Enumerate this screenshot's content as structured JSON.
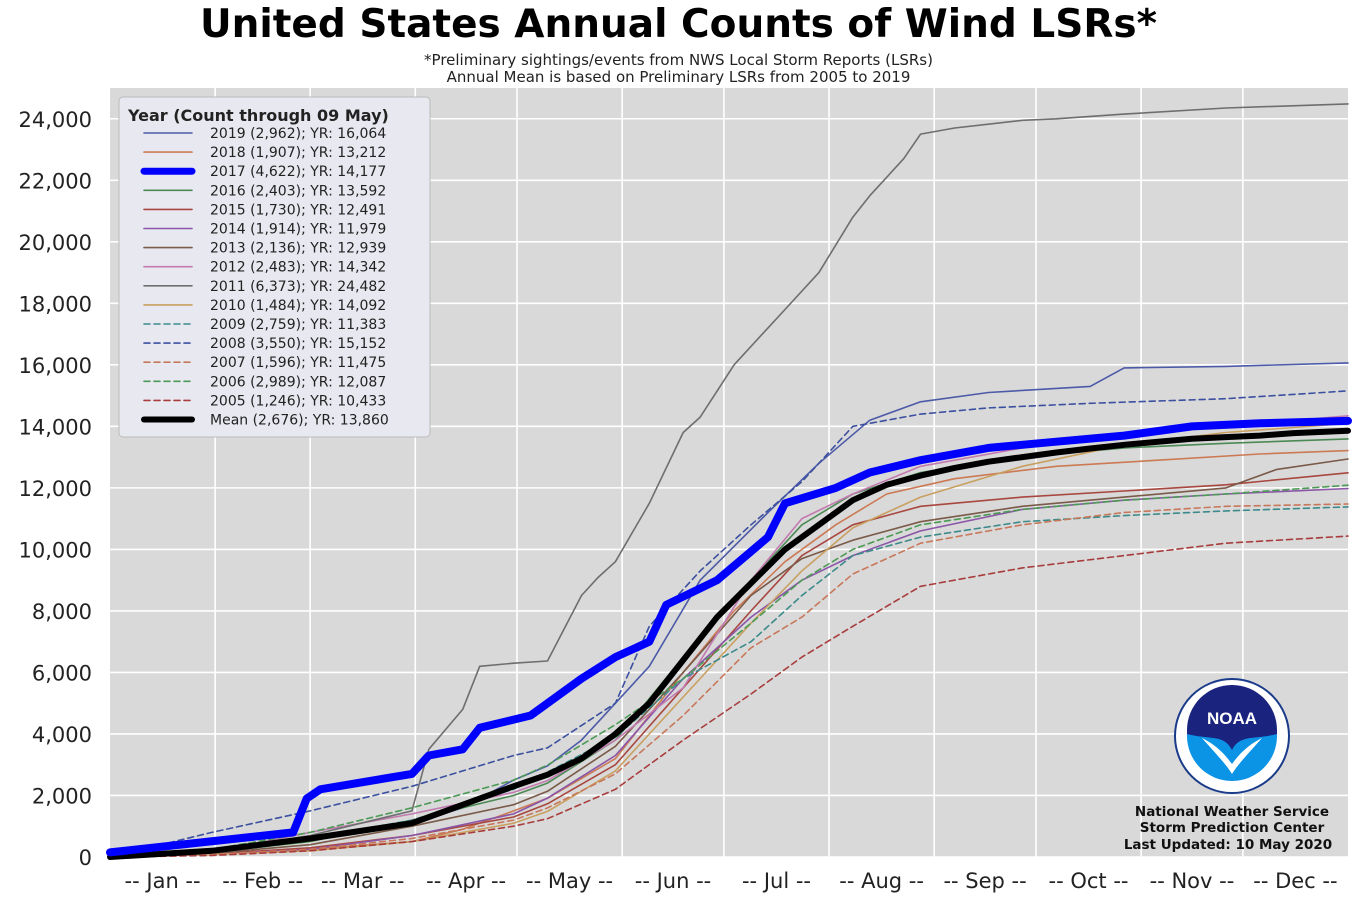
{
  "chart_data": {
    "type": "line",
    "title": "United States Annual Counts of Wind LSRs*",
    "subtitle": [
      "*Preliminary sightings/events from NWS Local Storm Reports (LSRs)",
      "Annual Mean is based on Preliminary LSRs from 2005 to 2019"
    ],
    "xlabel": "",
    "ylabel": "",
    "x_ticks": [
      "-- Jan --",
      "-- Feb --",
      "-- Mar --",
      "-- Apr --",
      "-- May --",
      "-- Jun --",
      "-- Jul --",
      "-- Aug --",
      "-- Sep --",
      "-- Oct --",
      "-- Nov --",
      "-- Dec --"
    ],
    "y_ticks": [
      "0",
      "2,000",
      "4,000",
      "6,000",
      "8,000",
      "10,000",
      "12,000",
      "14,000",
      "16,000",
      "18,000",
      "20,000",
      "22,000",
      "24,000"
    ],
    "xlim": [
      1,
      366
    ],
    "ylim": [
      0,
      25000
    ],
    "grid": true,
    "legend_title": "Year (Count through 09 May)",
    "legend_position": "top-left",
    "x_unit": "day of year",
    "series": [
      {
        "name": "2019 (2,962); YR: 16,064",
        "color": "#4c5aa8",
        "dash": "solid",
        "width": 1.6,
        "x": [
          1,
          31,
          60,
          90,
          105,
          120,
          130,
          140,
          160,
          175,
          195,
          210,
          225,
          240,
          260,
          290,
          300,
          330,
          366
        ],
        "y": [
          0,
          200,
          600,
          1100,
          1600,
          2500,
          2962,
          3800,
          6200,
          9000,
          11200,
          12800,
          14200,
          14800,
          15100,
          15300,
          15900,
          15950,
          16064
        ]
      },
      {
        "name": "2018 (1,907); YR: 13,212",
        "color": "#cc7a54",
        "dash": "solid",
        "width": 1.6,
        "x": [
          1,
          31,
          60,
          90,
          105,
          120,
          130,
          150,
          170,
          185,
          200,
          215,
          230,
          250,
          280,
          310,
          340,
          366
        ],
        "y": [
          0,
          100,
          250,
          500,
          900,
          1500,
          1907,
          3200,
          6000,
          8000,
          9600,
          10800,
          11800,
          12300,
          12700,
          12900,
          13100,
          13212
        ]
      },
      {
        "name": "2017 (4,622); YR: 14,177",
        "color": "#0000ff",
        "dash": "solid",
        "width": 8,
        "x": [
          1,
          30,
          55,
          59,
          63,
          90,
          95,
          105,
          110,
          125,
          140,
          150,
          160,
          165,
          180,
          195,
          200,
          215,
          225,
          240,
          260,
          280,
          300,
          320,
          340,
          366
        ],
        "y": [
          150,
          500,
          800,
          1900,
          2200,
          2700,
          3300,
          3500,
          4200,
          4600,
          5800,
          6500,
          7000,
          8200,
          9000,
          10400,
          11500,
          12000,
          12500,
          12900,
          13300,
          13500,
          13700,
          14000,
          14100,
          14177
        ]
      },
      {
        "name": "2016 (2,403); YR: 13,592",
        "color": "#4c8a55",
        "dash": "solid",
        "width": 1.6,
        "x": [
          1,
          31,
          60,
          90,
          120,
          130,
          150,
          170,
          190,
          205,
          220,
          240,
          270,
          300,
          330,
          366
        ],
        "y": [
          0,
          150,
          500,
          1200,
          2000,
          2403,
          3800,
          6500,
          9000,
          10800,
          11800,
          12500,
          13000,
          13300,
          13450,
          13592
        ]
      },
      {
        "name": "2015 (1,730); YR: 12,491",
        "color": "#a8473f",
        "dash": "solid",
        "width": 1.6,
        "x": [
          1,
          31,
          60,
          90,
          120,
          130,
          150,
          170,
          190,
          205,
          220,
          240,
          270,
          300,
          330,
          366
        ],
        "y": [
          0,
          100,
          300,
          700,
          1300,
          1730,
          3000,
          5500,
          8000,
          9800,
          10800,
          11400,
          11700,
          11900,
          12100,
          12491
        ]
      },
      {
        "name": "2014 (1,914); YR: 11,979",
        "color": "#8b56a8",
        "dash": "solid",
        "width": 1.6,
        "x": [
          1,
          31,
          60,
          90,
          120,
          130,
          150,
          170,
          190,
          205,
          220,
          240,
          270,
          300,
          330,
          366
        ],
        "y": [
          0,
          80,
          250,
          700,
          1400,
          1914,
          3300,
          5800,
          7800,
          9000,
          9800,
          10600,
          11300,
          11600,
          11800,
          11979
        ]
      },
      {
        "name": "2013 (2,136); YR: 12,939",
        "color": "#7a5a48",
        "dash": "solid",
        "width": 1.6,
        "x": [
          1,
          31,
          60,
          90,
          120,
          130,
          150,
          170,
          190,
          205,
          220,
          240,
          270,
          300,
          330,
          345,
          366
        ],
        "y": [
          0,
          120,
          400,
          1000,
          1700,
          2136,
          3600,
          6000,
          8500,
          9700,
          10300,
          10900,
          11400,
          11700,
          12000,
          12600,
          12939
        ]
      },
      {
        "name": "2012 (2,483); YR: 14,342",
        "color": "#c27ab0",
        "dash": "solid",
        "width": 1.6,
        "x": [
          1,
          31,
          60,
          90,
          120,
          130,
          150,
          170,
          190,
          205,
          220,
          240,
          270,
          300,
          330,
          366
        ],
        "y": [
          0,
          150,
          800,
          1400,
          2100,
          2483,
          3800,
          5500,
          9000,
          11000,
          11800,
          12700,
          13300,
          13700,
          14000,
          14342
        ]
      },
      {
        "name": "2011 (6,373); YR: 24,482",
        "color": "#6e6e6e",
        "dash": "solid",
        "width": 1.6,
        "x": [
          1,
          31,
          60,
          90,
          95,
          105,
          110,
          120,
          130,
          140,
          145,
          150,
          160,
          170,
          175,
          185,
          195,
          200,
          210,
          220,
          225,
          235,
          240,
          250,
          270,
          280,
          300,
          330,
          366
        ],
        "y": [
          0,
          200,
          700,
          1500,
          3500,
          4800,
          6200,
          6300,
          6373,
          8500,
          9100,
          9600,
          11500,
          13800,
          14300,
          16000,
          17200,
          17800,
          19000,
          20800,
          21500,
          22700,
          23500,
          23700,
          23950,
          24000,
          24150,
          24350,
          24482
        ]
      },
      {
        "name": "2010 (1,484); YR: 14,092",
        "color": "#c9a060",
        "dash": "solid",
        "width": 1.6,
        "x": [
          1,
          31,
          60,
          90,
          120,
          130,
          150,
          170,
          190,
          205,
          220,
          240,
          270,
          300,
          330,
          366
        ],
        "y": [
          0,
          80,
          200,
          500,
          1100,
          1484,
          2800,
          5200,
          7600,
          9300,
          10700,
          11700,
          12700,
          13400,
          13800,
          14092
        ]
      },
      {
        "name": "2009 (2,759); YR: 11,383",
        "color": "#3c8a8a",
        "dash": "dashed",
        "width": 1.6,
        "x": [
          1,
          31,
          60,
          90,
          120,
          130,
          150,
          170,
          190,
          205,
          220,
          240,
          270,
          300,
          330,
          366
        ],
        "y": [
          0,
          150,
          600,
          1200,
          2200,
          2759,
          3900,
          5800,
          7000,
          8500,
          9800,
          10400,
          10900,
          11100,
          11250,
          11383
        ]
      },
      {
        "name": "2008 (3,550); YR: 15,152",
        "color": "#3c50a0",
        "dash": "dashed",
        "width": 1.6,
        "x": [
          1,
          31,
          60,
          90,
          105,
          120,
          130,
          150,
          160,
          175,
          190,
          205,
          220,
          240,
          260,
          290,
          330,
          366
        ],
        "y": [
          0,
          800,
          1500,
          2300,
          2800,
          3300,
          3550,
          5000,
          7500,
          9300,
          10800,
          12200,
          14000,
          14400,
          14600,
          14750,
          14900,
          15152
        ]
      },
      {
        "name": "2007 (1,596); YR: 11,475",
        "color": "#c8785a",
        "dash": "dashed",
        "width": 1.6,
        "x": [
          1,
          31,
          60,
          90,
          120,
          130,
          150,
          170,
          190,
          205,
          220,
          240,
          270,
          300,
          330,
          366
        ],
        "y": [
          0,
          80,
          250,
          600,
          1200,
          1596,
          2700,
          4600,
          6800,
          7800,
          9200,
          10200,
          10800,
          11200,
          11400,
          11475
        ]
      },
      {
        "name": "2006 (2,989); YR: 12,087",
        "color": "#4c9a55",
        "dash": "dashed",
        "width": 1.6,
        "x": [
          1,
          31,
          60,
          90,
          120,
          130,
          150,
          170,
          190,
          205,
          220,
          240,
          270,
          300,
          330,
          366
        ],
        "y": [
          0,
          250,
          800,
          1600,
          2500,
          2989,
          4300,
          5800,
          7600,
          9000,
          10000,
          10800,
          11300,
          11600,
          11800,
          12087
        ]
      },
      {
        "name": "2005 (1,246); YR: 10,433",
        "color": "#a83c3c",
        "dash": "dashed",
        "width": 1.6,
        "x": [
          1,
          31,
          60,
          90,
          120,
          130,
          150,
          170,
          190,
          205,
          220,
          240,
          270,
          300,
          330,
          366
        ],
        "y": [
          0,
          50,
          200,
          500,
          1000,
          1246,
          2200,
          3800,
          5300,
          6500,
          7500,
          8800,
          9400,
          9800,
          10200,
          10433
        ]
      },
      {
        "name": "Mean (2,676); YR: 13,860",
        "color": "#000000",
        "dash": "solid",
        "width": 6,
        "x": [
          1,
          31,
          60,
          90,
          100,
          110,
          120,
          130,
          140,
          150,
          160,
          170,
          180,
          190,
          200,
          210,
          220,
          230,
          240,
          250,
          260,
          270,
          280,
          290,
          300,
          310,
          320,
          330,
          340,
          350,
          366
        ],
        "y": [
          0,
          200,
          600,
          1100,
          1500,
          1900,
          2300,
          2676,
          3200,
          4000,
          5000,
          6400,
          7800,
          8900,
          10000,
          10800,
          11600,
          12100,
          12400,
          12650,
          12850,
          13000,
          13150,
          13280,
          13400,
          13500,
          13600,
          13650,
          13700,
          13780,
          13860
        ]
      }
    ]
  },
  "credits": {
    "line1": "National Weather Service",
    "line2": "Storm Prediction Center",
    "line3": "Last Updated: 10 May 2020"
  },
  "logo_text": "NOAA"
}
